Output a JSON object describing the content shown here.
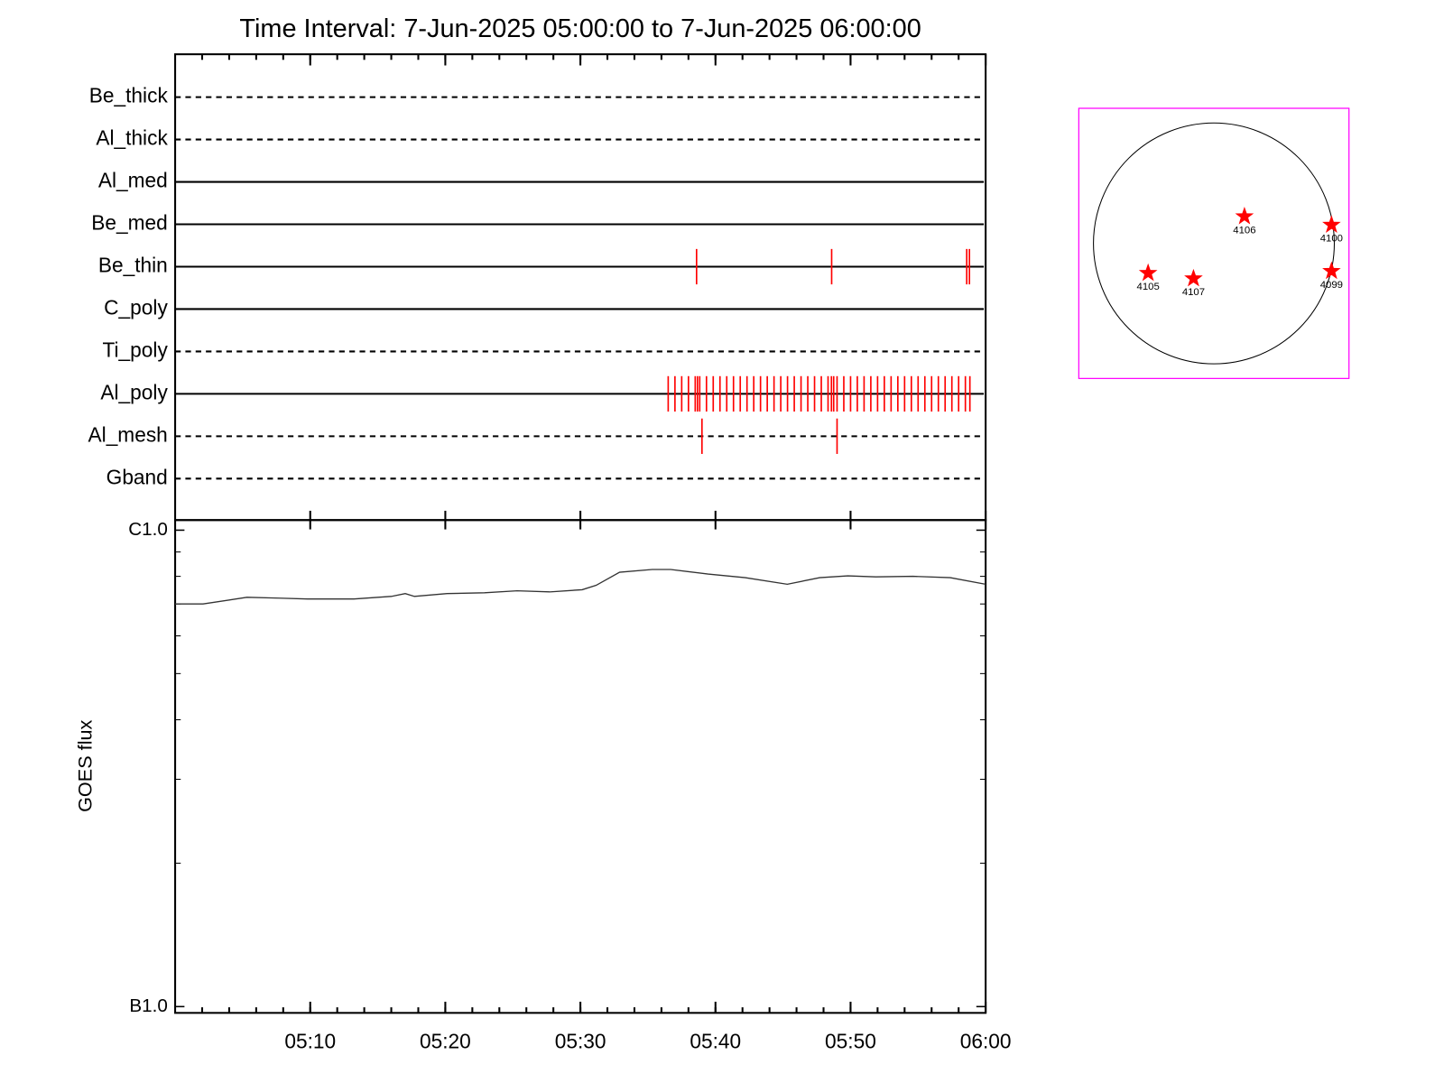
{
  "chart_data": [
    {
      "type": "timeline",
      "title": "Time Interval:  7-Jun-2025 05:00:00 to  7-Jun-2025 06:00:00",
      "xlim": [
        "05:00",
        "06:00"
      ],
      "xticks": [
        "05:10",
        "05:20",
        "05:30",
        "05:40",
        "05:50",
        "06:00"
      ],
      "event_color": "#ff0000",
      "rows": [
        {
          "name": "Be_thick",
          "line": "dashed",
          "events": []
        },
        {
          "name": "Al_thick",
          "line": "dashed",
          "events": []
        },
        {
          "name": "Al_med",
          "line": "solid",
          "events": []
        },
        {
          "name": "Be_med",
          "line": "solid",
          "events": []
        },
        {
          "name": "Be_thin",
          "line": "solid",
          "events": [
            "05:38:36",
            "05:48:36",
            "05:58:36",
            "05:58:48"
          ]
        },
        {
          "name": "C_poly",
          "line": "solid",
          "events": []
        },
        {
          "name": "Ti_poly",
          "line": "dashed",
          "events": []
        },
        {
          "name": "Al_poly",
          "line": "solid",
          "events": [
            "05:36:30",
            "05:37:00",
            "05:37:30",
            "05:38:00",
            "05:38:30",
            "05:38:40",
            "05:38:50",
            "05:39:20",
            "05:39:50",
            "05:40:20",
            "05:40:50",
            "05:41:20",
            "05:41:50",
            "05:42:20",
            "05:42:50",
            "05:43:20",
            "05:43:50",
            "05:44:20",
            "05:44:50",
            "05:45:20",
            "05:45:50",
            "05:46:20",
            "05:46:50",
            "05:47:20",
            "05:47:50",
            "05:48:20",
            "05:48:35",
            "05:48:45",
            "05:49:00",
            "05:49:30",
            "05:50:00",
            "05:50:30",
            "05:51:00",
            "05:51:30",
            "05:52:00",
            "05:52:30",
            "05:53:00",
            "05:53:30",
            "05:54:00",
            "05:54:30",
            "05:55:00",
            "05:55:30",
            "05:56:00",
            "05:56:30",
            "05:57:00",
            "05:57:30",
            "05:58:00",
            "05:58:30",
            "05:58:50"
          ]
        },
        {
          "name": "Al_mesh",
          "line": "dashed",
          "events": [
            "05:39:00",
            "05:49:00"
          ]
        },
        {
          "name": "Gband",
          "line": "dashed",
          "events": []
        }
      ]
    },
    {
      "type": "line",
      "ylabel": "GOES flux",
      "log_y": true,
      "color": "#333333",
      "xlim": [
        "05:00",
        "06:00"
      ],
      "xticks": [
        "05:10",
        "05:20",
        "05:30",
        "05:40",
        "05:50",
        "06:00"
      ],
      "ylim": [
        9.7e-08,
        1.05e-06
      ],
      "yticks": [
        {
          "value": 1e-06,
          "label": "C1.0"
        },
        {
          "value": 1e-07,
          "label": "B1.0"
        }
      ],
      "x": [
        "05:00:00",
        "05:02:04",
        "05:05:19",
        "05:07:43",
        "05:09:48",
        "05:13:14",
        "05:16:00",
        "05:17:02",
        "05:17:43",
        "05:20:08",
        "05:22:54",
        "05:25:19",
        "05:27:43",
        "05:30:08",
        "05:31:10",
        "05:32:54",
        "05:35:19",
        "05:36:41",
        "05:39:27",
        "05:42:12",
        "05:45:19",
        "05:47:43",
        "05:49:48",
        "05:51:52",
        "05:54:37",
        "05:57:23",
        "06:00:00"
      ],
      "values": [
        7e-07,
        7e-07,
        7.23e-07,
        7.2e-07,
        7.17e-07,
        7.17e-07,
        7.26e-07,
        7.36e-07,
        7.26e-07,
        7.36e-07,
        7.39e-07,
        7.46e-07,
        7.42e-07,
        7.5e-07,
        7.66e-07,
        8.16e-07,
        8.27e-07,
        8.27e-07,
        8.09e-07,
        7.95e-07,
        7.7e-07,
        7.95e-07,
        8.02e-07,
        7.98e-07,
        8e-07,
        7.95e-07,
        7.7e-07
      ]
    },
    {
      "type": "sun_map",
      "box_color": "#ff00ff",
      "marker_color": "#ff0000",
      "xlim": [
        -1060,
        1060
      ],
      "ylim": [
        -1060,
        1060
      ],
      "solar_radius": 945,
      "regions": [
        {
          "name": "4106",
          "x": 240,
          "y": 211
        },
        {
          "name": "4100",
          "x": 923,
          "y": 145
        },
        {
          "name": "4105",
          "x": -516,
          "y": -233
        },
        {
          "name": "4107",
          "x": -160,
          "y": -276
        },
        {
          "name": "4099",
          "x": 923,
          "y": -218
        }
      ]
    }
  ]
}
